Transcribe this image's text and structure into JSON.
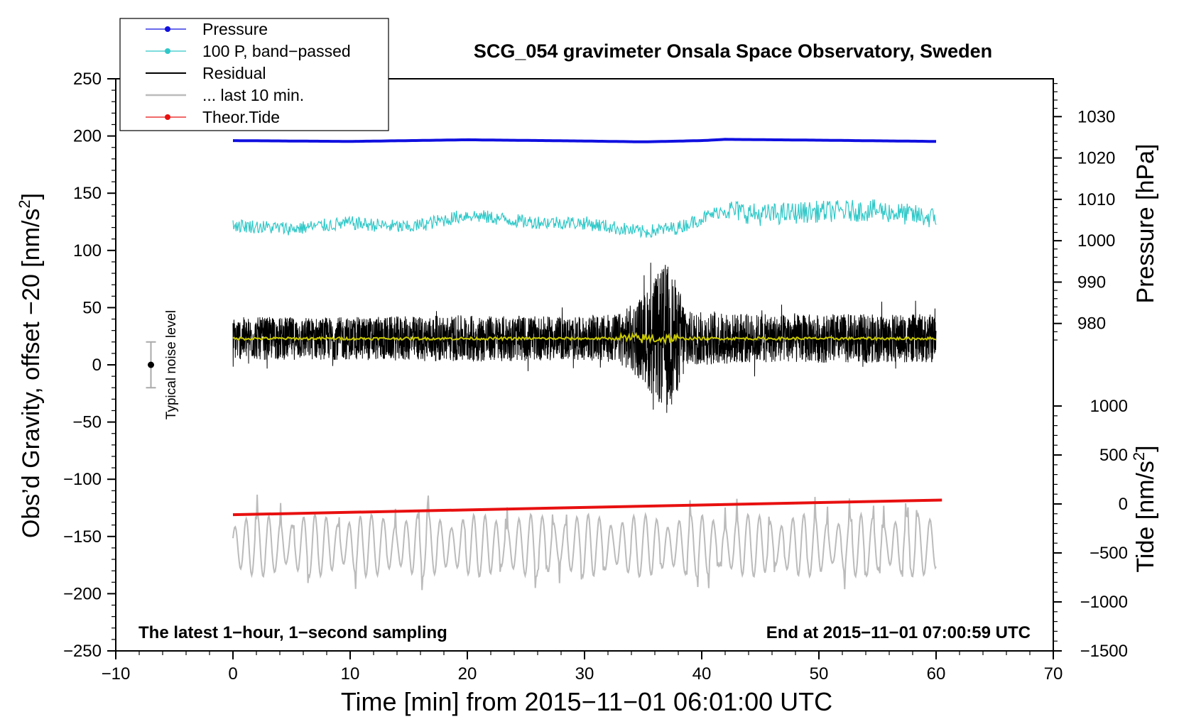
{
  "chart_data": {
    "type": "line",
    "title": "SCG_054 gravimeter Onsala Space Observatory, Sweden",
    "xlabel": "Time [min] from 2015−11−01 06:01:00 UTC",
    "ylabel_left": "Obs’d Gravity, offset −20 [nm/s",
    "ylabel_left_sup": "2",
    "ylabel_left_end": "]",
    "ylabel_right_pressure": "Pressure [hPa]",
    "ylabel_right_tide": "Tide [nm/s",
    "ylabel_right_tide_sup": "2",
    "ylabel_right_tide_end": "]",
    "xlim": [
      -10,
      70
    ],
    "ylim": [
      -250,
      250
    ],
    "pressure_axis_lim": [
      970,
      1040
    ],
    "tide_axis_lim": [
      -1500,
      1500
    ],
    "x_ticks": [
      "−10",
      "0",
      "10",
      "20",
      "30",
      "40",
      "50",
      "60",
      "70"
    ],
    "y_ticks": [
      "−250",
      "−200",
      "−150",
      "−100",
      "−50",
      "0",
      "50",
      "100",
      "150",
      "200",
      "250"
    ],
    "pressure_ticks": [
      "980",
      "990",
      "1000",
      "1010",
      "1020",
      "1030"
    ],
    "tide_ticks": [
      "−1500",
      "−1000",
      "−500",
      "0",
      "500",
      "1000"
    ],
    "legend": [
      "Pressure",
      "100 P, band−passed",
      "Residual",
      "... last 10 min.",
      "Theor.Tide"
    ],
    "legend_colors": [
      "#1010e0",
      "#30c8c8",
      "#000000",
      "#bbbbbb",
      "#e81010"
    ],
    "noise_label": "Typical noise level",
    "noise_bar": {
      "x": -7,
      "center": 0,
      "low": -20,
      "high": 20
    },
    "annotation_left": "The latest 1−hour, 1−second sampling",
    "annotation_right": "End at 2015−11−01 07:00:59 UTC",
    "series": [
      {
        "name": "Pressure",
        "axis": "pressure_hPa",
        "color": "#1010e0",
        "x": [
          0,
          10,
          20,
          30,
          35,
          40,
          42,
          50,
          60
        ],
        "values": [
          1024.2,
          1024.0,
          1024.4,
          1024.1,
          1023.9,
          1024.2,
          1024.5,
          1024.3,
          1024.0
        ]
      },
      {
        "name": "100 P, band−passed",
        "axis": "gravity",
        "color": "#30c8c8",
        "x": [
          0,
          5,
          10,
          15,
          20,
          25,
          30,
          35,
          38,
          42,
          45,
          50,
          55,
          60
        ],
        "values": [
          122,
          119,
          124,
          120,
          131,
          125,
          124,
          116,
          120,
          136,
          131,
          134,
          135,
          128
        ],
        "noise_amplitude": 6
      },
      {
        "name": "Residual",
        "axis": "gravity",
        "color": "#000000",
        "x": [
          0,
          10,
          20,
          30,
          33,
          35,
          37,
          39,
          45,
          50,
          60
        ],
        "values": [
          23,
          23,
          23,
          23,
          23,
          23,
          23,
          23,
          23,
          23,
          23
        ],
        "noise_amplitude": [
          22,
          22,
          24,
          22,
          26,
          45,
          80,
          28,
          25,
          25,
          25
        ]
      },
      {
        "name": "Residual smoothed",
        "axis": "gravity",
        "color": "#c8c800",
        "x": [
          0,
          60
        ],
        "values": [
          23,
          23
        ]
      },
      {
        "name": "... last 10 min.",
        "axis": "gravity",
        "color": "#bbbbbb",
        "x": [
          0,
          60
        ],
        "values": [
          -158,
          -158
        ],
        "noise_amplitude": 25
      },
      {
        "name": "Theor.Tide",
        "axis": "tide_nm_s2",
        "color": "#e81010",
        "x": [
          0,
          60.5
        ],
        "values": [
          -110,
          40
        ]
      }
    ]
  }
}
